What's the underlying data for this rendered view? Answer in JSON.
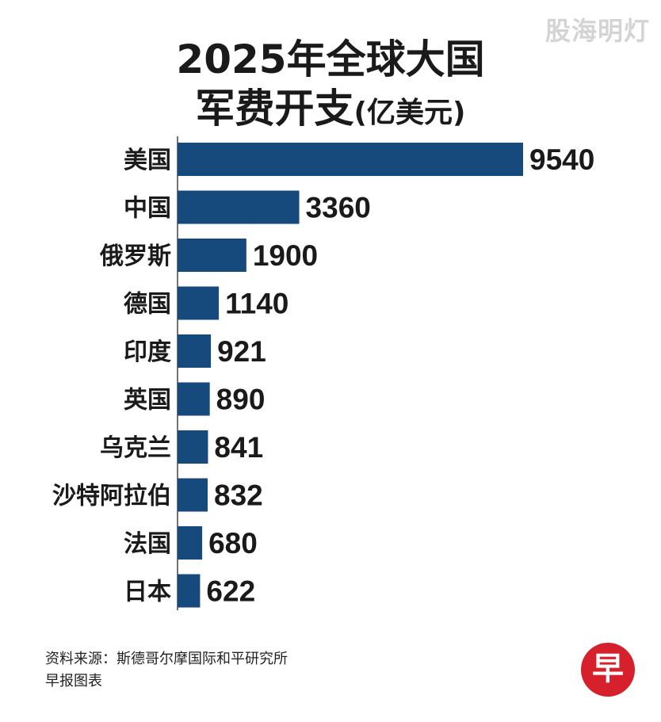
{
  "watermark": "股海明灯",
  "title_line1": "2025年全球大国",
  "title_line2": "军费开支",
  "title_unit": "(亿美元)",
  "chart_data": {
    "type": "bar",
    "orientation": "horizontal",
    "categories": [
      "美国",
      "中国",
      "俄罗斯",
      "德国",
      "印度",
      "英国",
      "乌克兰",
      "沙特阿拉伯",
      "法国",
      "日本"
    ],
    "values": [
      9540,
      3360,
      1900,
      1140,
      921,
      890,
      841,
      832,
      680,
      622
    ],
    "data_labels": [
      "9540",
      "3360",
      "1900",
      "1140",
      "921",
      "890",
      "841",
      "832",
      "680",
      "622"
    ],
    "title": "2025年全球大国 军费开支(亿美元)",
    "xlabel": "",
    "ylabel": "",
    "xlim": [
      0,
      9540
    ],
    "bar_color": "#174a7c",
    "grid": false,
    "legend": "none"
  },
  "footer": {
    "source": "资料来源：斯德哥尔摩国际和平研究所",
    "credit": "早报图表"
  },
  "logo": {
    "text": "早",
    "color": "#d6202b"
  }
}
